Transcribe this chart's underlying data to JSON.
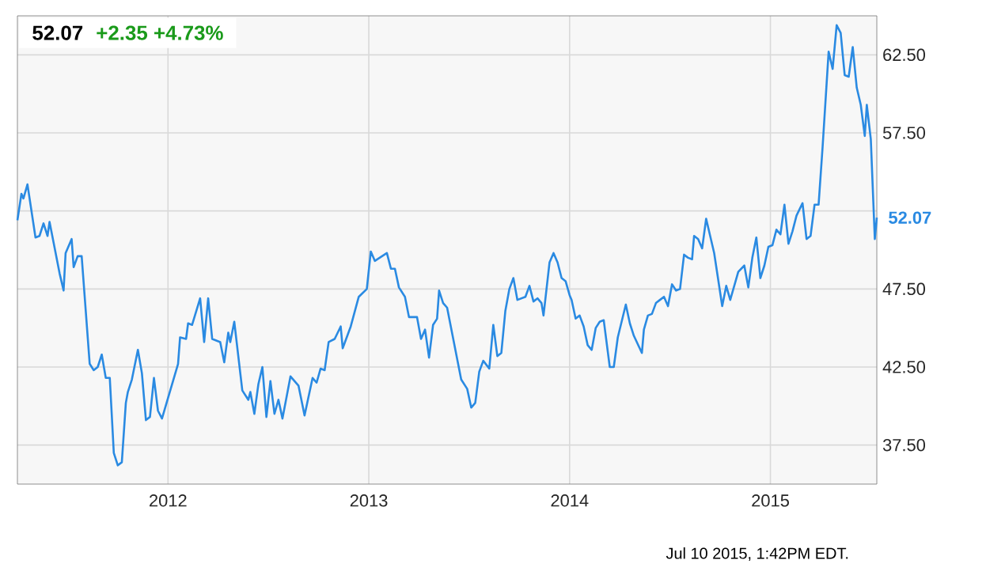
{
  "chart_data": {
    "type": "line",
    "title": "52.07",
    "subtitle": "+2.35 +4.73%",
    "color": "#2a8ae2",
    "grid": true,
    "xlim": [
      2011.25,
      2015.53
    ],
    "xticks": [
      2012,
      2013,
      2014,
      2015
    ],
    "ylim": [
      35,
      65
    ],
    "yticks": [
      {
        "value": 37.5,
        "label": "37.50"
      },
      {
        "value": 42.5,
        "label": "42.50"
      },
      {
        "value": 47.5,
        "label": "47.50"
      },
      {
        "value": 52.5,
        "label": null
      },
      {
        "value": 57.5,
        "label": "57.50"
      },
      {
        "value": 62.5,
        "label": "62.50"
      }
    ],
    "x": [
      2011.25,
      2011.27,
      2011.28,
      2011.3,
      2011.34,
      2011.36,
      2011.38,
      2011.4,
      2011.41,
      2011.46,
      2011.48,
      2011.49,
      2011.52,
      2011.53,
      2011.55,
      2011.57,
      2011.61,
      2011.63,
      2011.65,
      2011.67,
      2011.69,
      2011.71,
      2011.73,
      2011.75,
      2011.77,
      2011.79,
      2011.8,
      2011.82,
      2011.85,
      2011.87,
      2011.89,
      2011.91,
      2011.93,
      2011.95,
      2011.97,
      2012.05,
      2012.06,
      2012.09,
      2012.1,
      2012.12,
      2012.16,
      2012.18,
      2012.2,
      2012.22,
      2012.26,
      2012.28,
      2012.3,
      2012.31,
      2012.33,
      2012.37,
      2012.4,
      2012.41,
      2012.43,
      2012.45,
      2012.47,
      2012.49,
      2012.51,
      2012.53,
      2012.55,
      2012.57,
      2012.61,
      2012.65,
      2012.68,
      2012.72,
      2012.74,
      2012.76,
      2012.78,
      2012.8,
      2012.83,
      2012.86,
      2012.87,
      2012.91,
      2012.95,
      2012.99,
      2013.01,
      2013.03,
      2013.09,
      2013.11,
      2013.13,
      2013.15,
      2013.18,
      2013.2,
      2013.24,
      2013.26,
      2013.28,
      2013.3,
      2013.32,
      2013.34,
      2013.35,
      2013.37,
      2013.39,
      2013.46,
      2013.49,
      2013.51,
      2013.53,
      2013.55,
      2013.57,
      2013.6,
      2013.62,
      2013.64,
      2013.66,
      2013.68,
      2013.7,
      2013.72,
      2013.74,
      2013.78,
      2013.8,
      2013.82,
      2013.84,
      2013.86,
      2013.87,
      2013.9,
      2013.92,
      2013.94,
      2013.96,
      2013.98,
      2014.0,
      2014.01,
      2014.03,
      2014.05,
      2014.07,
      2014.09,
      2014.11,
      2014.13,
      2014.15,
      2014.17,
      2014.2,
      2014.22,
      2014.24,
      2014.28,
      2014.3,
      2014.32,
      2014.36,
      2014.37,
      2014.39,
      2014.41,
      2014.43,
      2014.45,
      2014.47,
      2014.49,
      2014.51,
      2014.53,
      2014.55,
      2014.57,
      2014.59,
      2014.61,
      2014.62,
      2014.64,
      2014.66,
      2014.68,
      2014.7,
      2014.72,
      2014.74,
      2014.76,
      2014.78,
      2014.8,
      2014.84,
      2014.87,
      2014.89,
      2014.91,
      2014.93,
      2014.95,
      2014.97,
      2014.99,
      2015.01,
      2015.03,
      2015.05,
      2015.07,
      2015.09,
      2015.11,
      2015.13,
      2015.16,
      2015.18,
      2015.2,
      2015.22,
      2015.24,
      2015.26,
      2015.29,
      2015.31,
      2015.33,
      2015.35,
      2015.37,
      2015.39,
      2015.41,
      2015.43,
      2015.45,
      2015.47,
      2015.48,
      2015.5,
      2015.52,
      2015.53
    ],
    "values": [
      51.9,
      53.6,
      53.3,
      54.2,
      50.8,
      50.9,
      51.7,
      50.9,
      51.8,
      48.5,
      47.4,
      49.8,
      50.7,
      48.9,
      49.6,
      49.6,
      42.7,
      42.3,
      42.5,
      43.3,
      41.8,
      41.8,
      37.0,
      36.2,
      36.4,
      40.2,
      40.9,
      41.7,
      43.6,
      42.1,
      39.1,
      39.3,
      41.8,
      39.7,
      39.2,
      42.7,
      44.4,
      44.3,
      45.3,
      45.2,
      46.9,
      44.1,
      46.9,
      44.3,
      44.1,
      42.8,
      44.7,
      44.1,
      45.4,
      41.0,
      40.4,
      40.9,
      39.5,
      41.4,
      42.5,
      39.3,
      41.6,
      39.5,
      40.4,
      39.2,
      41.9,
      41.3,
      39.4,
      41.8,
      41.5,
      42.4,
      42.3,
      44.1,
      44.3,
      45.1,
      43.7,
      45.1,
      47.0,
      47.5,
      49.9,
      49.3,
      49.8,
      48.8,
      48.8,
      47.6,
      47.0,
      45.7,
      45.7,
      44.3,
      44.9,
      43.1,
      45.2,
      45.6,
      47.4,
      46.6,
      46.3,
      41.7,
      41.1,
      39.9,
      40.2,
      42.2,
      42.9,
      42.4,
      45.2,
      43.2,
      43.4,
      46.1,
      47.5,
      48.2,
      46.8,
      47.0,
      47.7,
      46.7,
      46.9,
      46.6,
      45.8,
      49.2,
      49.8,
      49.2,
      48.2,
      48.0,
      47.1,
      46.8,
      45.6,
      45.8,
      45.1,
      43.9,
      43.6,
      45.0,
      45.4,
      45.5,
      42.5,
      42.5,
      44.4,
      46.5,
      45.3,
      44.5,
      43.4,
      44.9,
      45.8,
      45.9,
      46.6,
      46.8,
      47.0,
      46.4,
      47.8,
      47.4,
      47.5,
      49.7,
      49.5,
      49.4,
      50.9,
      50.7,
      50.1,
      52.0,
      50.9,
      49.8,
      48.1,
      46.4,
      47.7,
      46.8,
      48.6,
      49.0,
      47.6,
      49.5,
      50.8,
      48.2,
      49.0,
      50.2,
      50.3,
      51.3,
      51.0,
      52.9,
      50.4,
      51.2,
      52.2,
      53.0,
      50.7,
      50.9,
      52.9,
      52.9,
      56.6,
      62.7,
      61.6,
      64.4,
      63.9,
      61.2,
      61.1,
      63.0,
      60.4,
      59.3,
      57.3,
      59.3,
      57.1,
      50.7,
      52.07
    ],
    "annotations": [
      {
        "text": "52.07",
        "x": 2015.53,
        "y": 52.07
      },
      "Jul 10 2015, 1:42PM EDT."
    ]
  }
}
